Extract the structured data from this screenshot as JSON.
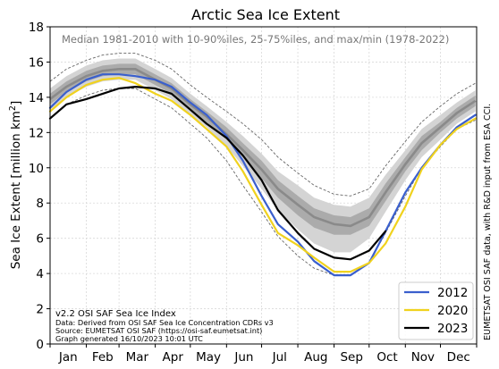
{
  "chart_data": {
    "type": "line",
    "title": "Arctic Sea Ice Extent",
    "subtitle": "Median 1981-2010 with 10-90%iles, 25-75%iles, and max/min (1978-2022)",
    "ylabel": "Sea Ice Extent [million km²]",
    "ylim": [
      0,
      18
    ],
    "yticks": [
      "0",
      "2",
      "4",
      "6",
      "8",
      "10",
      "12",
      "14",
      "16",
      "18"
    ],
    "months": [
      "Jan",
      "Feb",
      "Mar",
      "Apr",
      "May",
      "Jun",
      "Jul",
      "Aug",
      "Sep",
      "Oct",
      "Nov",
      "Dec"
    ],
    "grid": true,
    "legend_position": "bottom-right",
    "x_days": [
      1,
      15,
      32,
      46,
      60,
      74,
      91,
      105,
      121,
      135,
      152,
      166,
      182,
      196,
      213,
      227,
      244,
      258,
      274,
      288,
      305,
      319,
      335,
      349,
      365
    ],
    "median": [
      13.9,
      14.6,
      15.2,
      15.5,
      15.6,
      15.6,
      15.0,
      14.5,
      13.6,
      12.9,
      11.9,
      11.0,
      9.9,
      8.8,
      7.9,
      7.2,
      6.8,
      6.7,
      7.2,
      8.6,
      10.2,
      11.4,
      12.3,
      13.1,
      13.8
    ],
    "band_25_75": {
      "low": [
        13.6,
        14.3,
        14.9,
        15.2,
        15.3,
        15.3,
        14.7,
        14.2,
        13.3,
        12.6,
        11.6,
        10.6,
        9.4,
        8.3,
        7.3,
        6.6,
        6.2,
        6.2,
        6.7,
        8.1,
        9.8,
        11.0,
        12.0,
        12.8,
        13.5
      ],
      "high": [
        14.2,
        14.9,
        15.5,
        15.8,
        15.9,
        15.9,
        15.3,
        14.8,
        13.9,
        13.2,
        12.3,
        11.4,
        10.4,
        9.3,
        8.4,
        7.7,
        7.3,
        7.2,
        7.7,
        9.1,
        10.6,
        11.8,
        12.6,
        13.4,
        14.1
      ]
    },
    "band_10_90": {
      "low": [
        13.3,
        14.0,
        14.6,
        14.9,
        15.0,
        15.0,
        14.4,
        13.9,
        13.0,
        12.3,
        11.2,
        10.1,
        8.8,
        7.6,
        6.5,
        5.7,
        5.2,
        5.2,
        6.0,
        7.5,
        9.3,
        10.6,
        11.6,
        12.5,
        13.2
      ],
      "high": [
        14.5,
        15.2,
        15.8,
        16.1,
        16.2,
        16.2,
        15.6,
        15.1,
        14.2,
        13.5,
        12.6,
        11.8,
        10.8,
        9.8,
        9.0,
        8.3,
        7.9,
        7.8,
        8.3,
        9.6,
        11.0,
        12.2,
        13.0,
        13.7,
        14.4
      ]
    },
    "maxmin": {
      "min": [
        12.8,
        13.6,
        14.1,
        14.4,
        14.5,
        14.5,
        13.9,
        13.4,
        12.5,
        11.7,
        10.4,
        9.0,
        7.5,
        6.1,
        5.0,
        4.3,
        3.9,
        3.9,
        4.6,
        6.3,
        8.4,
        10.0,
        11.2,
        12.2,
        12.7
      ],
      "max": [
        14.9,
        15.6,
        16.1,
        16.4,
        16.5,
        16.5,
        16.1,
        15.6,
        14.7,
        14.0,
        13.2,
        12.5,
        11.6,
        10.6,
        9.7,
        9.0,
        8.5,
        8.4,
        8.8,
        10.1,
        11.5,
        12.6,
        13.5,
        14.2,
        14.8
      ]
    },
    "series": [
      {
        "name": "2012",
        "color": "#3a5fcd",
        "values": [
          13.4,
          14.3,
          15.0,
          15.3,
          15.3,
          15.2,
          15.0,
          14.6,
          13.7,
          13.0,
          11.8,
          10.4,
          8.4,
          6.8,
          5.8,
          4.7,
          3.9,
          3.9,
          4.6,
          6.4,
          8.6,
          10.0,
          11.3,
          12.3,
          13.0
        ]
      },
      {
        "name": "2020",
        "color": "#f0d21e",
        "values": [
          13.2,
          14.0,
          14.7,
          15.0,
          15.1,
          14.8,
          14.2,
          13.8,
          13.0,
          12.2,
          11.2,
          9.8,
          7.9,
          6.3,
          5.6,
          4.9,
          4.1,
          4.1,
          4.6,
          5.7,
          7.8,
          9.9,
          11.3,
          12.2,
          12.8
        ]
      },
      {
        "name": "2023",
        "color": "#000000",
        "values": [
          12.8,
          13.6,
          13.9,
          14.2,
          14.5,
          14.6,
          14.5,
          14.2,
          13.3,
          12.5,
          11.7,
          10.7,
          9.3,
          7.6,
          6.3,
          5.4,
          4.9,
          4.8,
          5.3,
          6.4,
          null,
          null,
          null,
          null,
          null
        ]
      }
    ],
    "credits": {
      "line1": "v2.2 OSI SAF Sea Ice Index",
      "line2": "Data: Derived from OSI SAF Sea Ice Concentration CDRs v3",
      "line3": "Source: EUMETSAT OSI SAF (https://osi-saf.eumetsat.int)",
      "line4": "Graph generated 16/10/2023 10:01 UTC"
    },
    "side_note": "EUMETSAT OSI SAF data, with R&D input from ESA CCI."
  }
}
